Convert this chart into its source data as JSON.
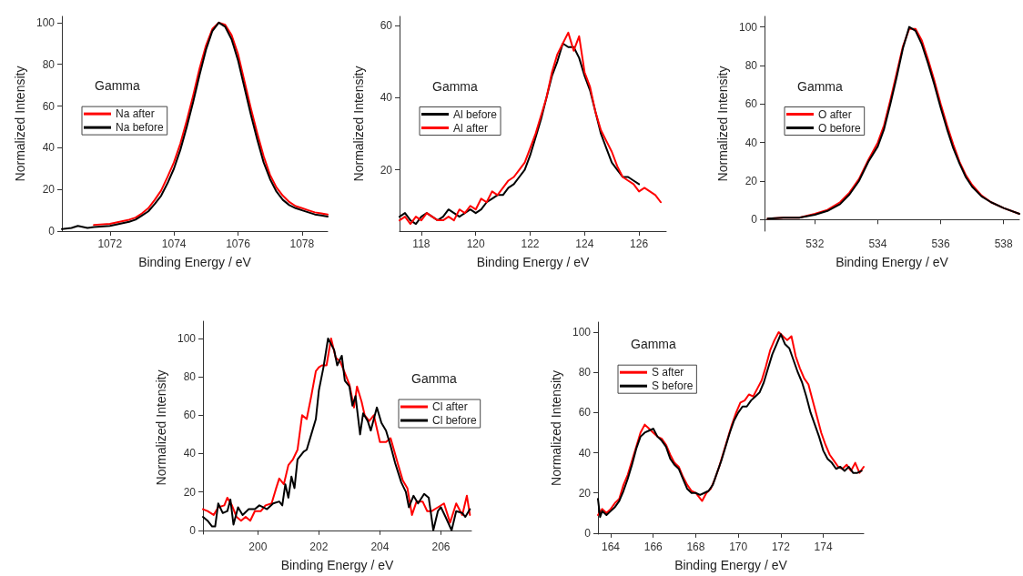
{
  "chart_data": [
    {
      "type": "line",
      "xlabel": "Binding Energy / eV",
      "ylabel": "Normalized Intensity",
      "annotations": [
        "Gamma"
      ],
      "legend": "left",
      "grid": false,
      "marker": "none",
      "line_style": "solid",
      "xlim": [
        1070.5,
        1078.8
      ],
      "xticks": [
        1072,
        1074,
        1076,
        1078
      ],
      "ylim": [
        0,
        103
      ],
      "yticks": [
        0,
        20,
        40,
        60,
        80,
        100
      ],
      "series": [
        {
          "name": "Na after",
          "color": "#ff0000",
          "x": [
            1071.5,
            1072,
            1072.3,
            1072.6,
            1072.8,
            1073,
            1073.2,
            1073.4,
            1073.6,
            1073.8,
            1074,
            1074.2,
            1074.4,
            1074.6,
            1074.8,
            1075,
            1075.2,
            1075.4,
            1075.6,
            1075.8,
            1076,
            1076.2,
            1076.4,
            1076.6,
            1076.8,
            1077,
            1077.2,
            1077.4,
            1077.6,
            1077.8,
            1078,
            1078.2,
            1078.4,
            1078.6,
            1078.8
          ],
          "values": [
            3,
            3.5,
            4.5,
            5.5,
            6.5,
            8.5,
            11,
            15,
            19.5,
            26,
            33,
            42,
            53,
            65,
            78,
            89,
            97,
            100,
            99,
            94,
            85,
            72,
            59,
            47,
            36,
            27,
            21,
            17,
            14,
            12,
            11,
            10,
            9,
            8.5,
            8
          ]
        },
        {
          "name": "Na before",
          "color": "#000000",
          "x": [
            1070.5,
            1070.8,
            1071,
            1071.3,
            1071.5,
            1072,
            1072.3,
            1072.6,
            1072.8,
            1073,
            1073.2,
            1073.4,
            1073.6,
            1073.8,
            1074,
            1074.2,
            1074.4,
            1074.6,
            1074.8,
            1075,
            1075.2,
            1075.4,
            1075.6,
            1075.8,
            1076,
            1076.2,
            1076.4,
            1076.6,
            1076.8,
            1077,
            1077.2,
            1077.4,
            1077.6,
            1077.8,
            1078,
            1078.2,
            1078.4,
            1078.6,
            1078.8
          ],
          "values": [
            1,
            1.5,
            2.5,
            1.5,
            2,
            2.5,
            3.5,
            4.5,
            5.5,
            7.5,
            9.5,
            13,
            17,
            23,
            30,
            39,
            50,
            62,
            75,
            87,
            96,
            100,
            98,
            92,
            82,
            69,
            56,
            44,
            33,
            25,
            19,
            15,
            12.5,
            11,
            10,
            9,
            8,
            7.5,
            7
          ]
        }
      ]
    },
    {
      "type": "line",
      "xlabel": "Binding Energy / eV",
      "ylabel": "Normalized Intensity",
      "annotations": [
        "Gamma"
      ],
      "legend": "left",
      "grid": false,
      "marker": "none",
      "line_style": "solid",
      "xlim": [
        117.2,
        127
      ],
      "xticks": [
        118,
        120,
        122,
        124,
        126
      ],
      "ylim": [
        3,
        62.5
      ],
      "yticks": [
        20,
        40,
        60
      ],
      "series": [
        {
          "name": "Al before",
          "color": "#000000",
          "x": [
            117.2,
            117.4,
            117.6,
            117.8,
            118,
            118.2,
            118.4,
            118.6,
            118.8,
            119,
            119.2,
            119.4,
            119.6,
            119.8,
            120,
            120.2,
            120.4,
            120.6,
            120.8,
            121,
            121.2,
            121.4,
            121.6,
            121.8,
            122,
            122.2,
            122.4,
            122.6,
            122.8,
            123,
            123.2,
            123.4,
            123.6,
            123.8,
            124,
            124.2,
            124.4,
            124.6,
            124.8,
            125,
            125.2,
            125.4,
            125.6,
            125.8,
            126
          ],
          "values": [
            7,
            8,
            6,
            5,
            7,
            8,
            7,
            6,
            7,
            9,
            8,
            7,
            8,
            9,
            8,
            9,
            11,
            12,
            13,
            13,
            15,
            16,
            18,
            20,
            24,
            29,
            34,
            40,
            46,
            50,
            55,
            54,
            54,
            51,
            46,
            42,
            36,
            30,
            26,
            22,
            20,
            18,
            18,
            17,
            16
          ]
        },
        {
          "name": "Al after",
          "color": "#ff0000",
          "x": [
            117.2,
            117.4,
            117.6,
            117.8,
            118,
            118.2,
            118.4,
            118.6,
            118.8,
            119,
            119.2,
            119.4,
            119.6,
            119.8,
            120,
            120.2,
            120.4,
            120.6,
            120.8,
            121,
            121.2,
            121.4,
            121.6,
            121.8,
            122,
            122.2,
            122.4,
            122.6,
            122.8,
            123,
            123.2,
            123.4,
            123.6,
            123.8,
            124,
            124.2,
            124.4,
            124.6,
            124.8,
            125,
            125.2,
            125.4,
            125.6,
            125.8,
            126,
            126.2,
            126.4,
            126.6,
            126.8
          ],
          "values": [
            6,
            7,
            5,
            7,
            6,
            8,
            7,
            6,
            6,
            7,
            6,
            9,
            8,
            10,
            9,
            12,
            11,
            14,
            13,
            15,
            17,
            18,
            20,
            22,
            26,
            30,
            35,
            40,
            47,
            52,
            55,
            58,
            53,
            57,
            47,
            43,
            36,
            31,
            28,
            25,
            21,
            18,
            17,
            16,
            14,
            15,
            14,
            13,
            11
          ]
        }
      ]
    },
    {
      "type": "line",
      "xlabel": "Binding Energy / eV",
      "ylabel": "Normalized Intensity",
      "annotations": [
        "Gamma"
      ],
      "legend": "left",
      "grid": false,
      "marker": "none",
      "line_style": "solid",
      "xlim": [
        530.4,
        538.5
      ],
      "xticks": [
        532,
        534,
        536,
        538
      ],
      "ylim": [
        -6,
        105.5
      ],
      "yticks": [
        0,
        20,
        40,
        60,
        80,
        100
      ],
      "series": [
        {
          "name": "O after",
          "color": "#ff0000",
          "x": [
            530.5,
            531,
            531.5,
            532,
            532.4,
            532.8,
            533.1,
            533.4,
            533.7,
            534,
            534.2,
            534.4,
            534.6,
            534.8,
            535,
            535.2,
            535.4,
            535.6,
            535.8,
            536,
            536.2,
            536.4,
            536.6,
            536.8,
            537,
            537.3,
            537.6,
            538,
            538.5
          ],
          "values": [
            0.5,
            1,
            1,
            3,
            5,
            9,
            14,
            21,
            31,
            40,
            49,
            62,
            76,
            90,
            99,
            99,
            93,
            83,
            72,
            60,
            49,
            39,
            30,
            23,
            18,
            12.5,
            9,
            6,
            3
          ]
        },
        {
          "name": "O before",
          "color": "#000000",
          "x": [
            530.5,
            531,
            531.5,
            532,
            532.4,
            532.8,
            533.1,
            533.4,
            533.7,
            534,
            534.2,
            534.4,
            534.6,
            534.8,
            535,
            535.2,
            535.4,
            535.6,
            535.8,
            536,
            536.2,
            536.4,
            536.6,
            536.8,
            537,
            537.3,
            537.6,
            538,
            538.5
          ],
          "values": [
            0.5,
            1,
            1,
            2.5,
            4.5,
            8,
            13,
            20,
            30,
            38,
            47,
            60,
            74,
            89,
            100,
            98,
            91,
            81,
            70,
            58,
            47,
            37,
            29,
            22,
            17,
            12,
            9,
            6,
            3
          ]
        }
      ]
    },
    {
      "type": "line",
      "xlabel": "Binding Energy / eV",
      "ylabel": "Normalized Intensity",
      "annotations": [
        "Gamma"
      ],
      "legend": "right",
      "grid": false,
      "marker": "none",
      "line_style": "solid",
      "xlim": [
        198.2,
        207
      ],
      "xticks": [
        200,
        202,
        204,
        206
      ],
      "ylim": [
        -2,
        109
      ],
      "yticks": [
        0,
        20,
        40,
        60,
        80,
        100
      ],
      "series": [
        {
          "name": "Cl after",
          "color": "#ff0000",
          "x": [
            198.2,
            198.35,
            198.55,
            198.7,
            198.9,
            199,
            199.15,
            199.3,
            199.45,
            199.6,
            199.75,
            199.9,
            200.1,
            200.25,
            200.45,
            200.6,
            200.7,
            200.85,
            201,
            201.15,
            201.3,
            201.45,
            201.6,
            201.75,
            201.9,
            202,
            202.1,
            202.25,
            202.4,
            202.55,
            202.7,
            202.85,
            203,
            203.15,
            203.25,
            203.4,
            203.5,
            203.65,
            203.8,
            204,
            204.2,
            204.35,
            204.6,
            204.75,
            204.9,
            205.05,
            205.2,
            205.4,
            205.55,
            205.7,
            205.9,
            206.1,
            206.3,
            206.5,
            206.7,
            206.85,
            206.95
          ],
          "values": [
            11,
            10,
            8,
            12,
            13,
            17,
            13,
            7,
            5,
            7,
            5,
            10,
            10,
            13,
            14,
            22,
            27,
            24,
            34,
            37,
            42,
            60,
            58,
            70,
            83,
            85,
            86,
            86,
            100,
            90,
            88,
            82,
            76,
            64,
            75,
            67,
            60,
            57,
            60,
            46,
            46,
            48,
            34,
            26,
            22,
            8,
            15,
            15,
            10,
            10,
            12,
            14,
            4,
            14,
            8,
            18,
            8
          ]
        },
        {
          "name": "Cl before",
          "color": "#000000",
          "x": [
            198.2,
            198.35,
            198.5,
            198.6,
            198.7,
            198.85,
            199,
            199.1,
            199.2,
            199.35,
            199.5,
            199.7,
            199.9,
            200.05,
            200.3,
            200.5,
            200.7,
            200.8,
            200.9,
            201,
            201.1,
            201.2,
            201.3,
            201.5,
            201.6,
            201.75,
            201.9,
            202,
            202.15,
            202.3,
            202.5,
            202.6,
            202.75,
            202.85,
            203,
            203.1,
            203.2,
            203.35,
            203.45,
            203.6,
            203.7,
            203.9,
            204.05,
            204.2,
            204.35,
            204.5,
            204.7,
            204.85,
            204.95,
            205.1,
            205.25,
            205.45,
            205.6,
            205.75,
            205.9,
            206,
            206.15,
            206.35,
            206.5,
            206.7,
            206.8,
            206.95
          ],
          "values": [
            7,
            5,
            2,
            2,
            14,
            9,
            10,
            16,
            3,
            12,
            8,
            11,
            11,
            13,
            11,
            14,
            15,
            13,
            24,
            17,
            28,
            22,
            37,
            41,
            42,
            50,
            58,
            73,
            85,
            100,
            94,
            86,
            91,
            78,
            75,
            65,
            70,
            50,
            61,
            57,
            52,
            64,
            56,
            52,
            44,
            35,
            25,
            20,
            12,
            18,
            14,
            19,
            17,
            0,
            10,
            12,
            7,
            0,
            10,
            9,
            7,
            11
          ]
        }
      ]
    },
    {
      "type": "line",
      "xlabel": "Binding Energy / eV",
      "ylabel": "Normalized Intensity",
      "annotations": [
        "Gamma"
      ],
      "legend": "top left",
      "grid": false,
      "marker": "none",
      "line_style": "solid",
      "xlim": [
        163.4,
        175.9
      ],
      "xticks": [
        164,
        166,
        168,
        170,
        172,
        174
      ],
      "ylim": [
        -0.5,
        105
      ],
      "yticks": [
        0,
        20,
        40,
        60,
        80,
        100
      ],
      "series": [
        {
          "name": "S after",
          "color": "#ff0000",
          "x": [
            163.4,
            163.6,
            163.8,
            164,
            164.2,
            164.4,
            164.6,
            164.8,
            165,
            165.2,
            165.4,
            165.6,
            165.8,
            166,
            166.2,
            166.4,
            166.6,
            166.8,
            167,
            167.2,
            167.4,
            167.6,
            167.8,
            168,
            168.3,
            168.5,
            168.7,
            168.9,
            169.1,
            169.3,
            169.5,
            169.7,
            169.9,
            170.1,
            170.3,
            170.5,
            170.7,
            170.9,
            171.1,
            171.3,
            171.5,
            171.7,
            171.9,
            172.1,
            172.3,
            172.5,
            172.7,
            172.9,
            173.1,
            173.3,
            173.5,
            173.7,
            173.9,
            174.1,
            174.3,
            174.5,
            174.7,
            174.9,
            175.1,
            175.3,
            175.5,
            175.7,
            175.9
          ],
          "values": [
            9,
            12,
            10,
            12,
            15,
            17,
            24,
            29,
            36,
            43,
            50,
            54,
            52,
            50,
            48,
            47,
            44,
            39,
            35,
            33,
            28,
            24,
            21,
            20,
            16,
            20,
            22,
            27,
            33,
            40,
            47,
            54,
            60,
            65,
            66,
            69,
            68,
            72,
            76,
            83,
            91,
            96,
            100,
            98,
            96,
            98,
            88,
            82,
            77,
            74,
            66,
            58,
            50,
            44,
            39,
            36,
            33,
            32,
            34,
            31,
            35,
            30,
            33
          ]
        },
        {
          "name": "S before",
          "color": "#000000",
          "x": [
            163.4,
            163.5,
            163.6,
            163.8,
            164,
            164.2,
            164.4,
            164.6,
            164.8,
            165,
            165.2,
            165.4,
            165.6,
            165.8,
            166,
            166.2,
            166.4,
            166.6,
            166.8,
            167,
            167.2,
            167.4,
            167.6,
            167.8,
            168,
            168.2,
            168.4,
            168.6,
            168.8,
            169,
            169.2,
            169.4,
            169.6,
            169.8,
            170,
            170.2,
            170.4,
            170.6,
            170.8,
            171,
            171.2,
            171.4,
            171.6,
            171.8,
            172,
            172.2,
            172.4,
            172.6,
            172.8,
            173,
            173.2,
            173.4,
            173.6,
            173.8,
            174,
            174.2,
            174.4,
            174.6,
            174.8,
            175,
            175.2,
            175.4,
            175.6,
            175.8
          ],
          "values": [
            17,
            8,
            11,
            9,
            11,
            13,
            16,
            21,
            27,
            34,
            42,
            48,
            50,
            51,
            52,
            48,
            46,
            43,
            37,
            34,
            32,
            27,
            22,
            20,
            20,
            19,
            20,
            21,
            24,
            30,
            36,
            43,
            50,
            56,
            60,
            63,
            63,
            66,
            68,
            70,
            75,
            82,
            89,
            94,
            99,
            94,
            92,
            86,
            80,
            75,
            68,
            60,
            54,
            48,
            41,
            37,
            35,
            32,
            33,
            31,
            33,
            30,
            30,
            31
          ]
        }
      ]
    }
  ]
}
